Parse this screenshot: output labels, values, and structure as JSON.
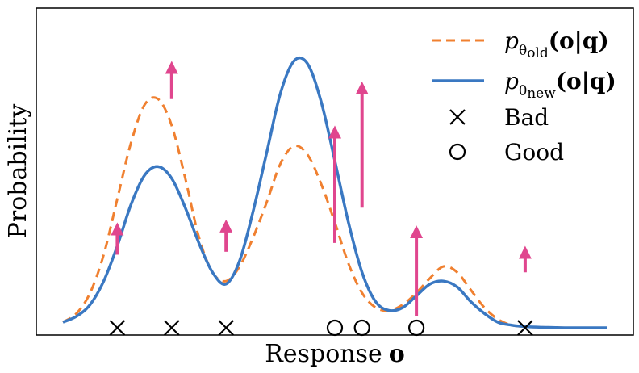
{
  "chart_data": {
    "type": "line",
    "title": "",
    "xlabel": "Response",
    "xlabel_symbol": "o",
    "ylabel": "Probability",
    "xlim": [
      0,
      20
    ],
    "ylim": [
      0,
      1.1
    ],
    "ticks_visible": false,
    "grid": false,
    "x": [
      0,
      0.5,
      1,
      1.5,
      2,
      2.5,
      3,
      3.5,
      4,
      4.5,
      5,
      5.5,
      6,
      6.5,
      7,
      7.5,
      8,
      8.5,
      9,
      9.5,
      10,
      10.5,
      11,
      11.5,
      12,
      12.5,
      13,
      13.5,
      14,
      14.5,
      15,
      15.5,
      16,
      16.5,
      17,
      17.5,
      18,
      18.5,
      19,
      19.5,
      20
    ],
    "series": [
      {
        "name": "p_old",
        "legend_label": "p_theta_old(o|q)",
        "legend_main": "p",
        "legend_sub1": "θ",
        "legend_sub2": "old",
        "legend_args": "(o|q)",
        "style": "dashed",
        "color": "#f08030",
        "values": [
          0.03,
          0.06,
          0.13,
          0.26,
          0.45,
          0.64,
          0.77,
          0.79,
          0.7,
          0.52,
          0.32,
          0.2,
          0.17,
          0.22,
          0.32,
          0.44,
          0.57,
          0.63,
          0.6,
          0.5,
          0.37,
          0.23,
          0.13,
          0.08,
          0.07,
          0.09,
          0.13,
          0.18,
          0.22,
          0.2,
          0.14,
          0.08,
          0.04,
          0.02,
          0.015,
          0.013,
          0.012,
          0.011,
          0.011,
          0.011,
          0.011
        ]
      },
      {
        "name": "p_new",
        "legend_label": "p_theta_new(o|q)",
        "legend_main": "p",
        "legend_sub1": "θ",
        "legend_sub2": "new",
        "legend_args": "(o|q)",
        "style": "solid",
        "color": "#3a78c2",
        "values": [
          0.03,
          0.05,
          0.09,
          0.17,
          0.29,
          0.43,
          0.53,
          0.56,
          0.52,
          0.42,
          0.3,
          0.2,
          0.16,
          0.24,
          0.41,
          0.61,
          0.81,
          0.92,
          0.91,
          0.78,
          0.58,
          0.37,
          0.2,
          0.1,
          0.07,
          0.08,
          0.12,
          0.16,
          0.17,
          0.15,
          0.1,
          0.06,
          0.03,
          0.02,
          0.015,
          0.013,
          0.012,
          0.011,
          0.011,
          0.011,
          0.011
        ]
      }
    ],
    "arrows": {
      "color": "#e0468e",
      "items": [
        {
          "x": 2,
          "from": 0.26,
          "to": 0.37
        },
        {
          "x": 4,
          "from": 0.79,
          "to": 0.92
        },
        {
          "x": 6,
          "from": 0.27,
          "to": 0.38
        },
        {
          "x": 10,
          "from": 0.3,
          "to": 0.7
        },
        {
          "x": 11,
          "from": 0.42,
          "to": 0.85
        },
        {
          "x": 13,
          "from": 0.05,
          "to": 0.36
        },
        {
          "x": 17,
          "from": 0.2,
          "to": 0.29
        }
      ]
    },
    "markers": [
      {
        "x": 2,
        "type": "bad"
      },
      {
        "x": 4,
        "type": "bad"
      },
      {
        "x": 6,
        "type": "bad"
      },
      {
        "x": 10,
        "type": "good"
      },
      {
        "x": 11,
        "type": "good"
      },
      {
        "x": 13,
        "type": "good"
      },
      {
        "x": 17,
        "type": "bad"
      }
    ],
    "legend": {
      "position": "top-right",
      "entries": [
        {
          "label": "Bad",
          "symbol": "×"
        },
        {
          "label": "Good",
          "symbol": "○"
        }
      ]
    }
  }
}
